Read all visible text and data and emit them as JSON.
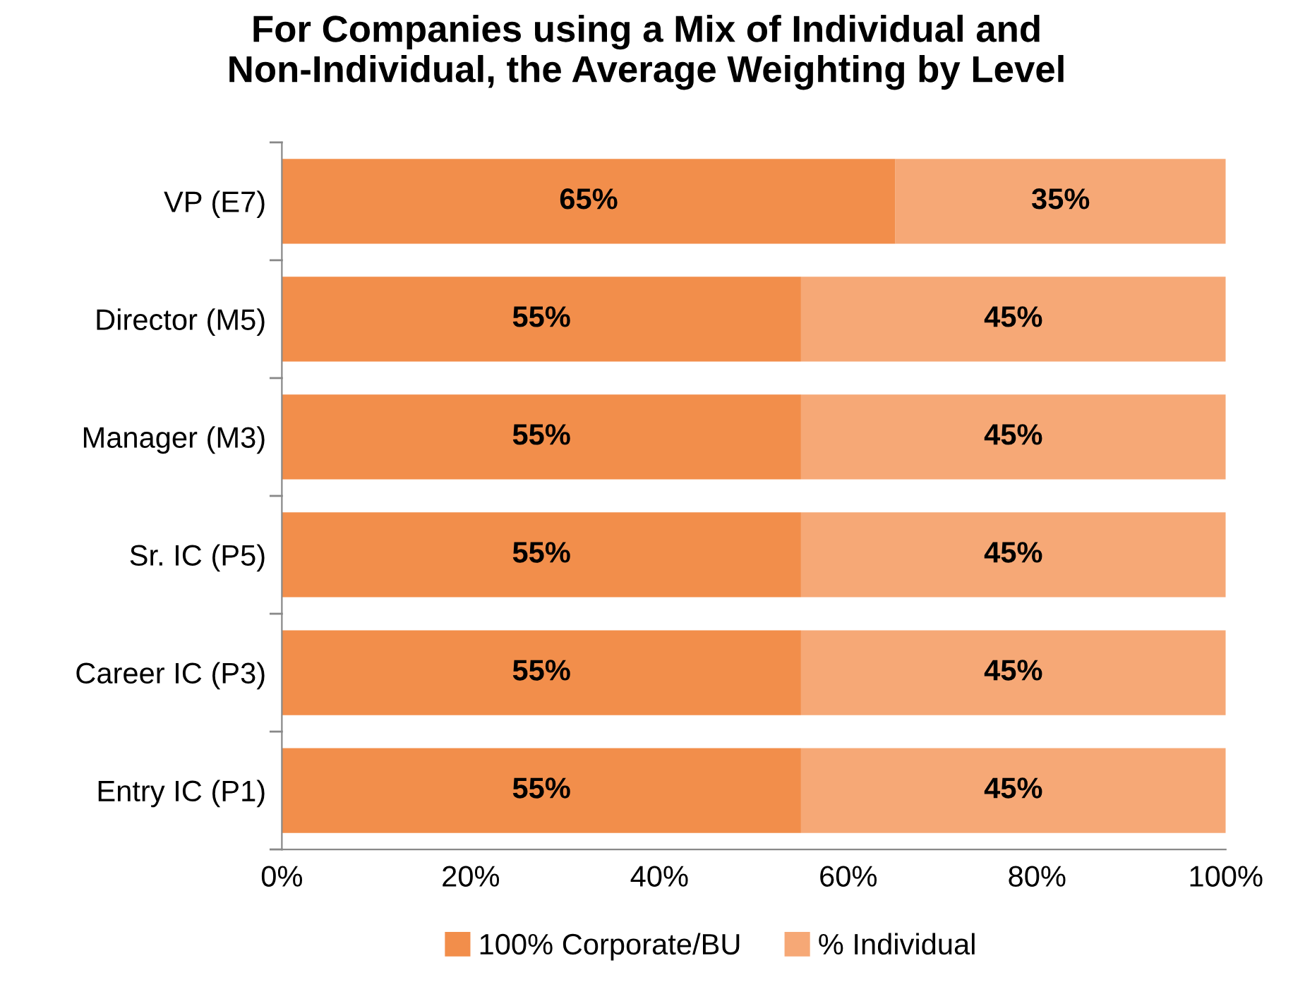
{
  "chart_data": {
    "type": "bar",
    "orientation": "horizontal",
    "stacked": true,
    "title": "For Companies using a Mix of Individual and\nNon-Individual, the Average Weighting by Level",
    "categories": [
      "VP (E7)",
      "Director (M5)",
      "Manager (M3)",
      "Sr. IC (P5)",
      "Career IC (P3)",
      "Entry IC (P1)"
    ],
    "series": [
      {
        "name": "100% Corporate/BU",
        "color": "#f28e4b",
        "values": [
          65,
          55,
          55,
          55,
          55,
          55
        ],
        "value_labels": [
          "65%",
          "55%",
          "55%",
          "55%",
          "55%",
          "55%"
        ]
      },
      {
        "name": "% Individual",
        "color": "#f6a876",
        "values": [
          35,
          45,
          45,
          45,
          45,
          45
        ],
        "value_labels": [
          "35%",
          "45%",
          "45%",
          "45%",
          "45%",
          "45%"
        ]
      }
    ],
    "xlim": [
      0,
      100
    ],
    "xticks": [
      {
        "value": 0,
        "label": "0%"
      },
      {
        "value": 20,
        "label": "20%"
      },
      {
        "value": 40,
        "label": "40%"
      },
      {
        "value": 60,
        "label": "60%"
      },
      {
        "value": 80,
        "label": "80%"
      },
      {
        "value": 100,
        "label": "100%"
      }
    ],
    "grid": false,
    "legend": "bottom"
  }
}
